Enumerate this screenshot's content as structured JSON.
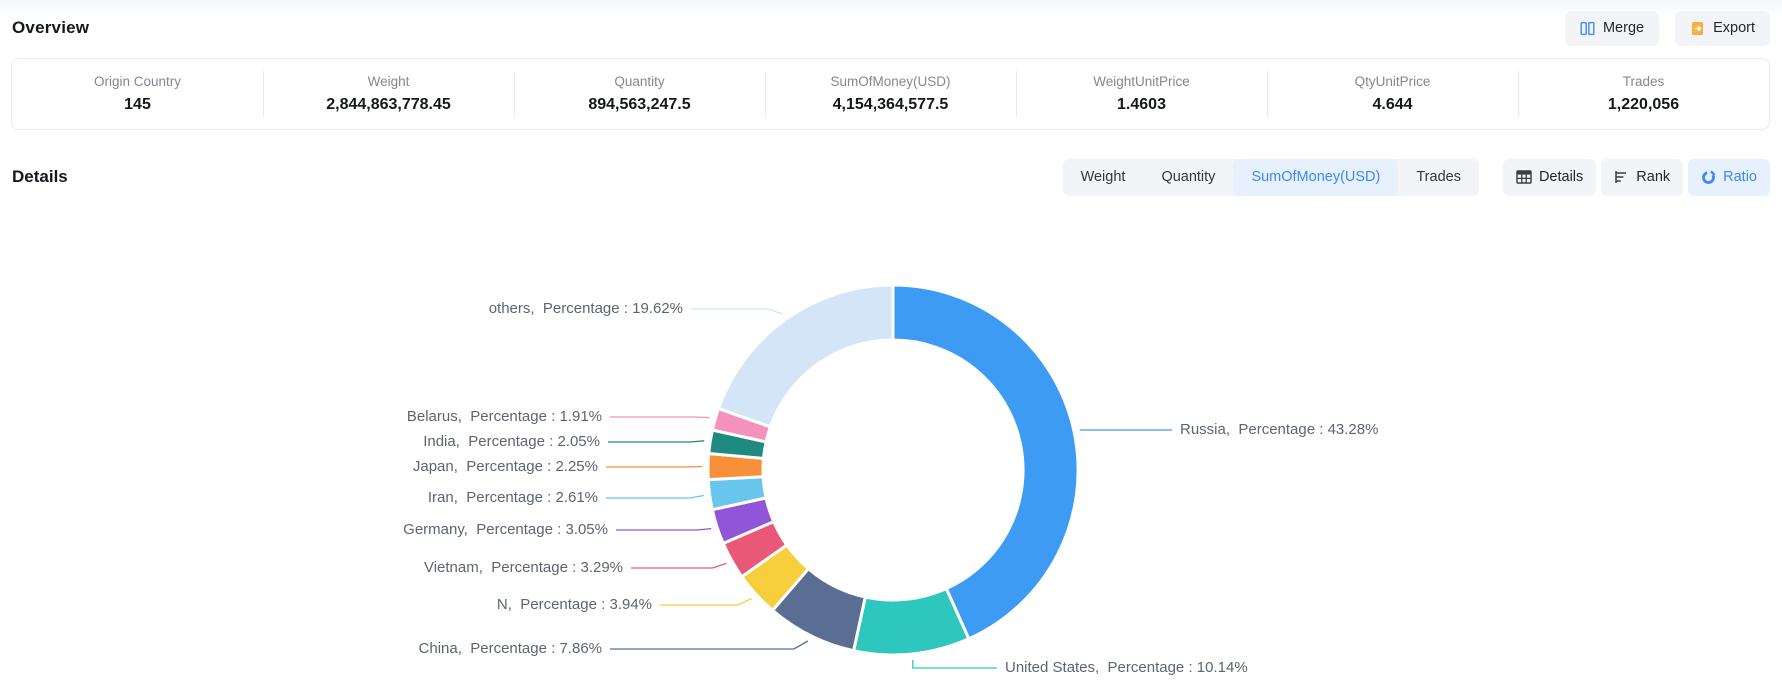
{
  "header": {
    "title": "Overview",
    "merge_label": "Merge",
    "export_label": "Export"
  },
  "overview": {
    "stats": [
      {
        "label": "Origin Country",
        "value": "145"
      },
      {
        "label": "Weight",
        "value": "2,844,863,778.45"
      },
      {
        "label": "Quantity",
        "value": "894,563,247.5"
      },
      {
        "label": "SumOfMoney(USD)",
        "value": "4,154,364,577.5"
      },
      {
        "label": "WeightUnitPrice",
        "value": "1.4603"
      },
      {
        "label": "QtyUnitPrice",
        "value": "4.644"
      },
      {
        "label": "Trades",
        "value": "1,220,056"
      }
    ]
  },
  "details": {
    "title": "Details",
    "metric_tabs": [
      {
        "label": "Weight",
        "active": false
      },
      {
        "label": "Quantity",
        "active": false
      },
      {
        "label": "SumOfMoney(USD)",
        "active": true
      },
      {
        "label": "Trades",
        "active": false
      }
    ],
    "view_buttons": [
      {
        "label": "Details",
        "icon": "table-icon",
        "active": false
      },
      {
        "label": "Rank",
        "icon": "rank-icon",
        "active": false
      },
      {
        "label": "Ratio",
        "icon": "ratio-icon",
        "active": true
      }
    ]
  },
  "chart_data": {
    "type": "pie",
    "donut": true,
    "start_angle_deg": 0,
    "clockwise": true,
    "legend_position": "none",
    "label_format": "{name},  Percentage : {value}%",
    "series": [
      {
        "name": "Russia",
        "value": 43.28,
        "color": "#3e9bf4"
      },
      {
        "name": "United States",
        "value": 10.14,
        "color": "#2ec7bd"
      },
      {
        "name": "China",
        "value": 7.86,
        "color": "#5a6d93"
      },
      {
        "name": "N",
        "value": 3.94,
        "color": "#f7ce3c"
      },
      {
        "name": "Vietnam",
        "value": 3.29,
        "color": "#ea5878"
      },
      {
        "name": "Germany",
        "value": 3.05,
        "color": "#9055d8"
      },
      {
        "name": "Iran",
        "value": 2.61,
        "color": "#68c5ee"
      },
      {
        "name": "Japan",
        "value": 2.25,
        "color": "#f79039"
      },
      {
        "name": "India",
        "value": 2.05,
        "color": "#1f8a80"
      },
      {
        "name": "Belarus",
        "value": 1.91,
        "color": "#f591bd"
      },
      {
        "name": "others",
        "value": 19.62,
        "color": "#d5e5f8"
      }
    ]
  },
  "colors": {
    "accent_blue": "#3d8af7",
    "active_tab_bg": "#e7f0fd",
    "button_bg": "#f2f4f7",
    "merge_icon": "#4a90f7",
    "export_icon": "#f6b03d",
    "chart_label_text": "#5e6470",
    "card_border": "#e9ebee"
  }
}
